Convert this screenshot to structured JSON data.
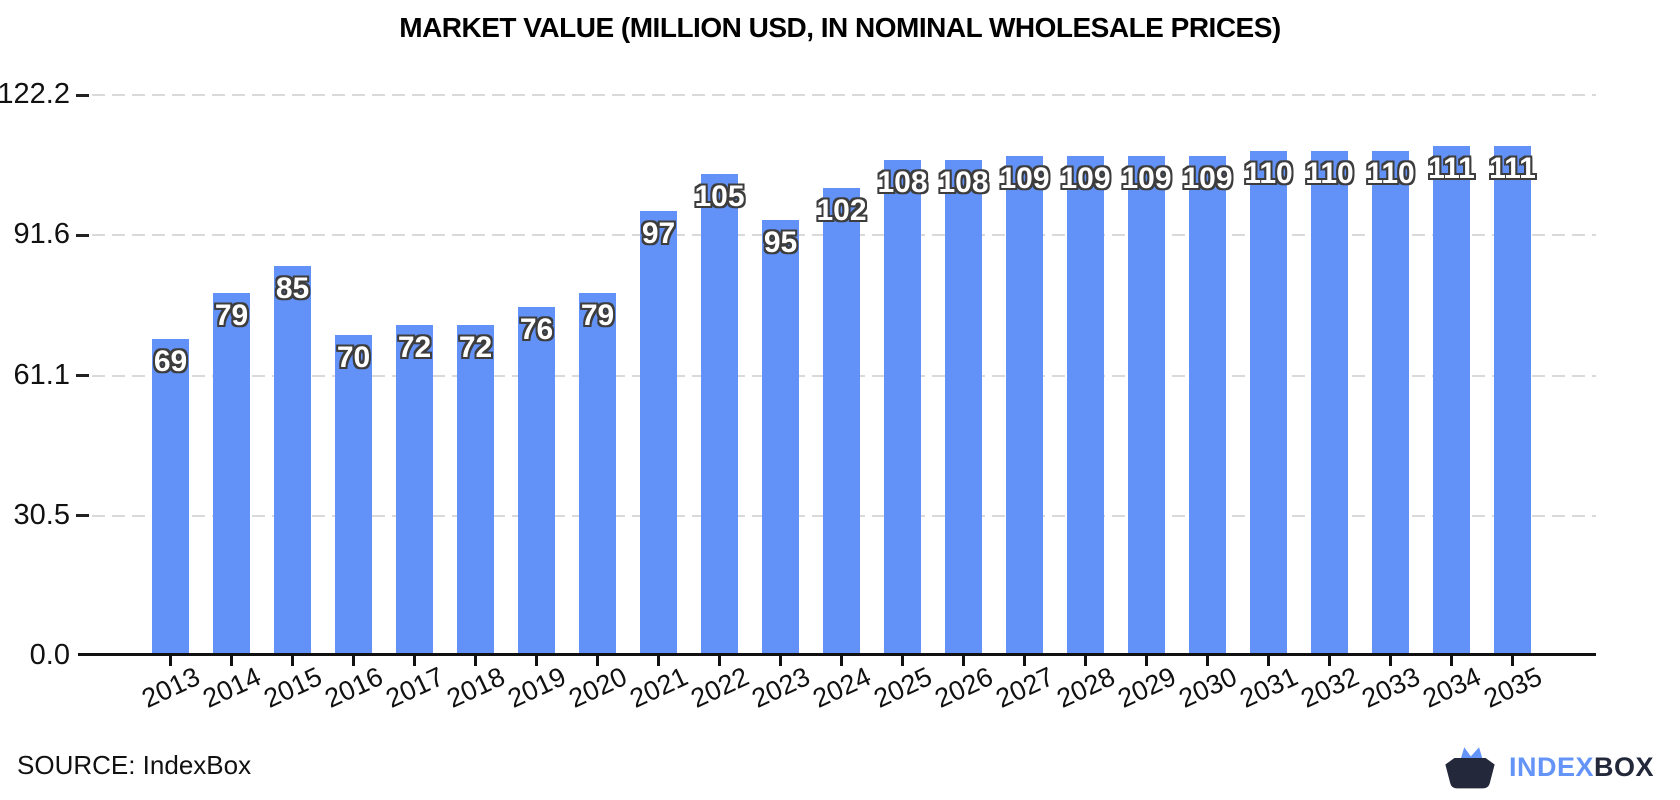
{
  "chart_data": {
    "type": "bar",
    "title": "MARKET VALUE (MILLION USD, IN NOMINAL WHOLESALE PRICES)",
    "categories": [
      "2013",
      "2014",
      "2015",
      "2016",
      "2017",
      "2018",
      "2019",
      "2020",
      "2021",
      "2022",
      "2023",
      "2024",
      "2025",
      "2026",
      "2027",
      "2028",
      "2029",
      "2030",
      "2031",
      "2032",
      "2033",
      "2034",
      "2035"
    ],
    "values": [
      69,
      79,
      85,
      70,
      72,
      72,
      76,
      79,
      97,
      105,
      95,
      102,
      108,
      108,
      109,
      109,
      109,
      109,
      110,
      110,
      110,
      111,
      111
    ],
    "xlabel": "",
    "ylabel": "",
    "ylim": [
      0,
      122.2
    ],
    "yticks": [
      0.0,
      30.5,
      61.1,
      91.6,
      122.2
    ],
    "ytick_labels": [
      "0.0",
      "30.5",
      "61.1",
      "91.6",
      "122.2"
    ],
    "grid": "horizontal-dashed",
    "legend": "none",
    "bar_color": "#6292f8",
    "bar_label_color": "#ffffff",
    "bar_label_outline_color": "#3d3d3d",
    "gridline_color": "#d9d9d9",
    "axis_color": "#111111"
  },
  "footer": {
    "source_label": "SOURCE: IndexBox",
    "logo_index": "INDEX",
    "logo_box": "BOX",
    "logo_blue": "#6494f8",
    "logo_dark": "#23283a",
    "logo_icon": "indexbox-box-cat-icon"
  }
}
